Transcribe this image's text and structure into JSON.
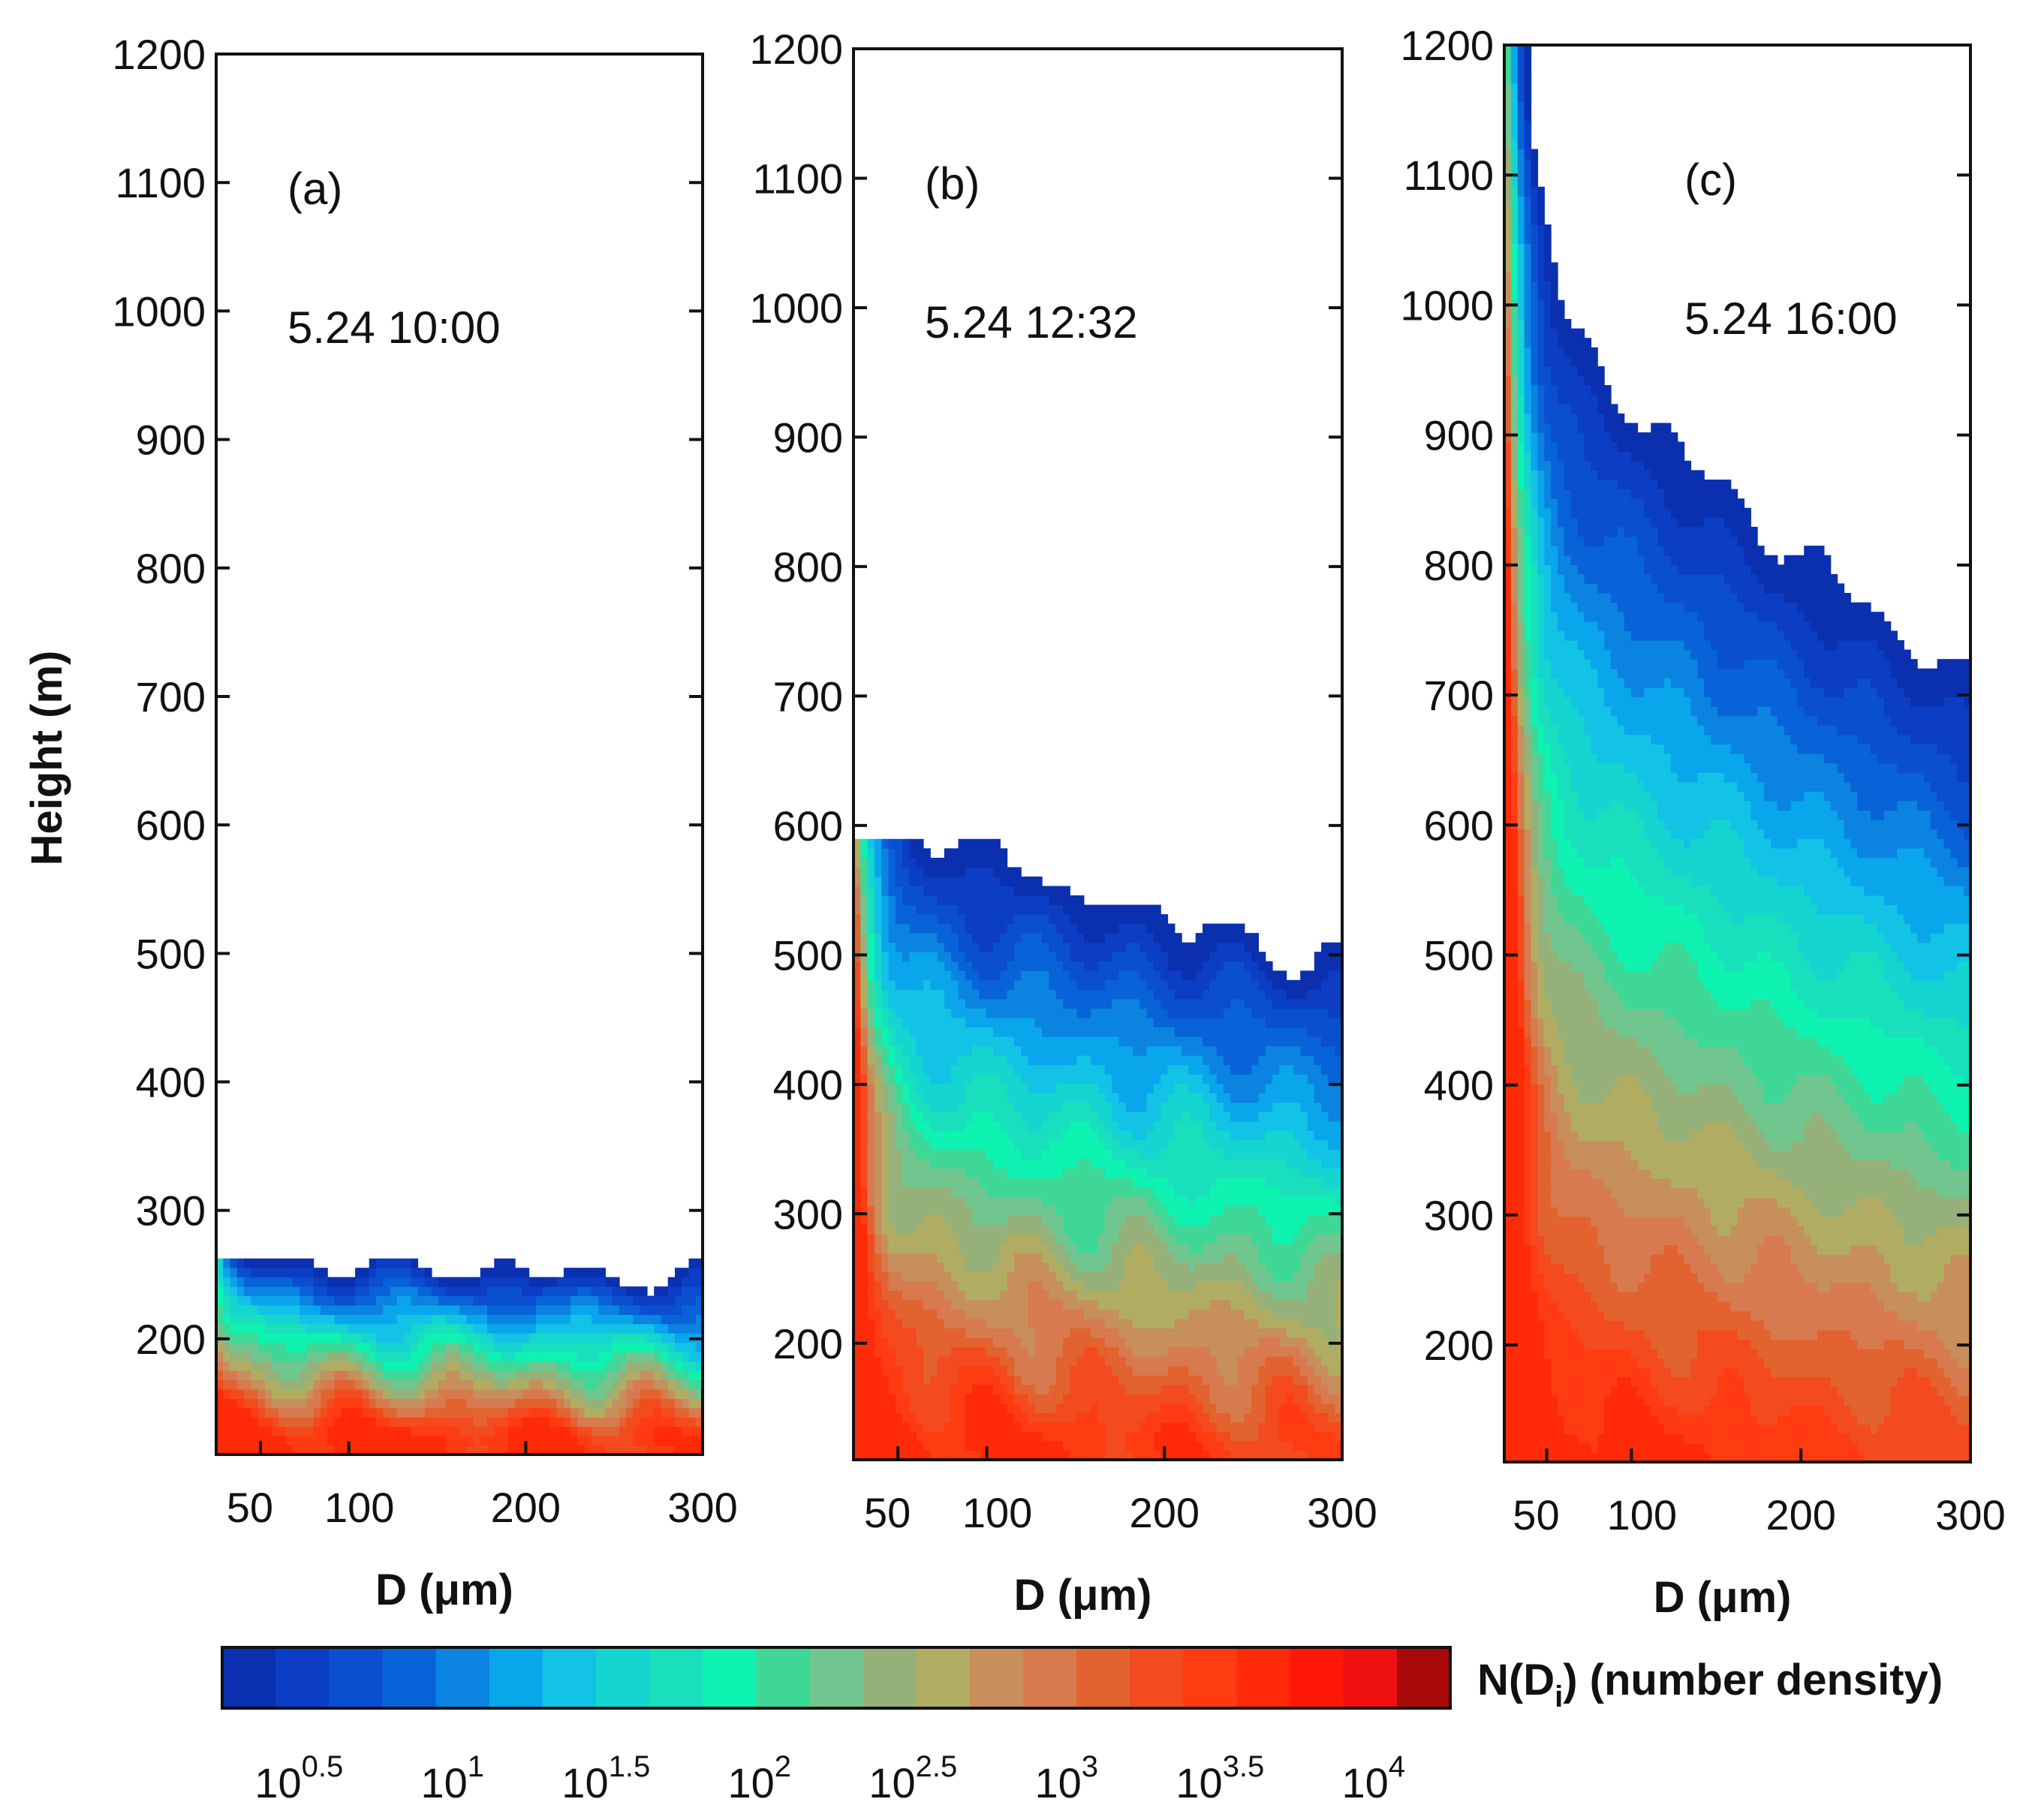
{
  "chart_data": {
    "type": "contour",
    "shared": {
      "ylabel": "Height (m)",
      "xlabel": "D (μm)",
      "ylim": [
        110,
        1200
      ],
      "yticks": [
        200,
        300,
        400,
        500,
        600,
        700,
        800,
        900,
        1000,
        1100,
        1200
      ],
      "xlim": [
        25,
        300
      ],
      "xticks": [
        50,
        100,
        200,
        300
      ],
      "colorbar": {
        "label_main": "N(D",
        "label_sub": "i",
        "label_rest": ") (number density)",
        "log10_range": [
          0.25,
          4.25
        ],
        "levels_per_band": 0.2,
        "ticks": [
          {
            "base": "10",
            "exp": "0.5",
            "log": 0.5
          },
          {
            "base": "10",
            "exp": "1",
            "log": 1
          },
          {
            "base": "10",
            "exp": "1.5",
            "log": 1.5
          },
          {
            "base": "10",
            "exp": "2",
            "log": 2
          },
          {
            "base": "10",
            "exp": "2.5",
            "log": 2.5
          },
          {
            "base": "10",
            "exp": "3",
            "log": 3
          },
          {
            "base": "10",
            "exp": "3.5",
            "log": 3.5
          },
          {
            "base": "10",
            "exp": "4",
            "log": 4
          }
        ],
        "colors": [
          "#0a30b0",
          "#0b3ec4",
          "#0a4fd0",
          "#0862d8",
          "#0a84e0",
          "#0aa6ec",
          "#13c3e6",
          "#14d5cf",
          "#18e0bc",
          "#0ef2b2",
          "#3fd796",
          "#71c68f",
          "#96b079",
          "#b0ad63",
          "#c68f5c",
          "#d87a4f",
          "#e2632f",
          "#f34a1f",
          "#ff3b12",
          "#ff2a08",
          "#ff1808",
          "#ee1010",
          "#a80a0a"
        ]
      }
    },
    "panels": [
      {
        "id": "a",
        "label": "(a)",
        "annotation": "5.24  10:00",
        "top_height": 260,
        "max_log": 4.2
      },
      {
        "id": "b",
        "label": "(b)",
        "annotation": "5.24  12:32",
        "top_height": 590,
        "max_log": 4.2
      },
      {
        "id": "c",
        "label": "(c)",
        "annotation": "5.24  16:00",
        "top_height": 1200,
        "max_log": 4.2
      }
    ]
  }
}
